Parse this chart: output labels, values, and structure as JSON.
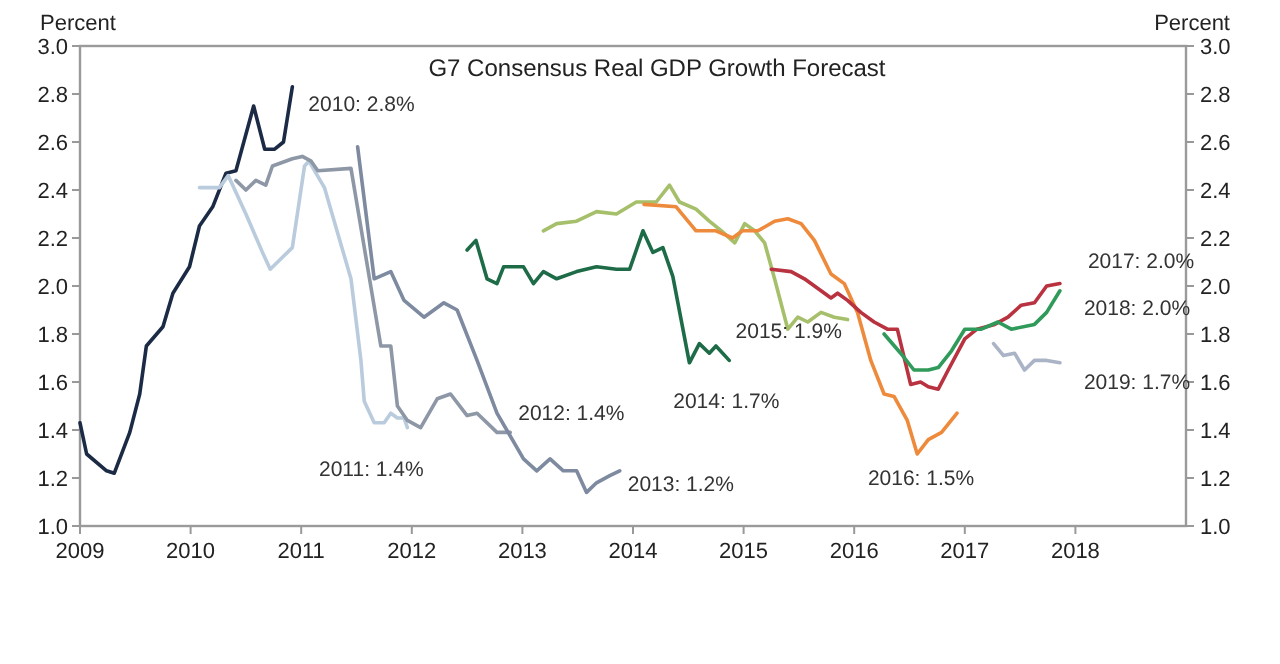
{
  "chart_data": {
    "type": "line",
    "title": "G7 Consensus Real GDP Growth Forecast",
    "ylabel": "Percent",
    "y2label": "Percent",
    "xlim": [
      2009,
      2019
    ],
    "xticks": [
      2009,
      2010,
      2011,
      2012,
      2013,
      2014,
      2015,
      2016,
      2017,
      2018
    ],
    "ylim": [
      1.0,
      3.0
    ],
    "yticks": [
      {
        "value": 1.0,
        "label": "1.0"
      },
      1.2,
      1.4,
      1.6,
      1.8,
      {
        "value": 2.0,
        "label": "2.0"
      },
      2.2,
      2.4,
      2.6,
      2.8,
      {
        "value": 3.0,
        "label": "3.0"
      }
    ],
    "y2lim": [
      1.0,
      3.0
    ],
    "y2ticks": [
      {
        "value": 1.0,
        "label": "1.0"
      },
      1.2,
      1.4,
      1.6,
      1.8,
      {
        "value": 2.0,
        "label": "2.0"
      },
      2.2,
      2.4,
      2.6,
      2.8,
      {
        "value": 3.0,
        "label": "3.0"
      }
    ],
    "grid": false,
    "marker": "none",
    "line_style": "solid",
    "series": [
      {
        "name": "2010: 2.8%",
        "color": "#1c2b45",
        "x": [
          2009.0,
          2009.06,
          2009.24,
          2009.31,
          2009.45,
          2009.54,
          2009.6,
          2009.75,
          2009.84,
          2009.99,
          2010.08,
          2010.2,
          2010.32,
          2010.41,
          2010.57,
          2010.67,
          2010.76,
          2010.84,
          2010.92
        ],
        "values": [
          1.43,
          1.3,
          1.23,
          1.22,
          1.39,
          1.55,
          1.75,
          1.83,
          1.97,
          2.08,
          2.25,
          2.33,
          2.47,
          2.48,
          2.75,
          2.57,
          2.57,
          2.6,
          2.83
        ]
      },
      {
        "name": "2011: 1.4%",
        "color": "#b9cbdc",
        "x": [
          2010.08,
          2010.26,
          2010.34,
          2010.5,
          2010.65,
          2010.72,
          2010.92,
          2011.03,
          2011.07,
          2011.21,
          2011.33,
          2011.45,
          2011.54,
          2011.57,
          2011.66,
          2011.75,
          2011.81,
          2011.87,
          2011.93,
          2011.96
        ],
        "values": [
          2.41,
          2.41,
          2.46,
          2.3,
          2.14,
          2.07,
          2.16,
          2.5,
          2.52,
          2.41,
          2.22,
          2.03,
          1.69,
          1.52,
          1.43,
          1.43,
          1.47,
          1.45,
          1.45,
          1.41
        ]
      },
      {
        "name": "2012: 1.4%",
        "color": "#8d97a6",
        "x": [
          2010.41,
          2010.5,
          2010.59,
          2010.68,
          2010.74,
          2010.92,
          2011.01,
          2011.09,
          2011.15,
          2011.45,
          2011.72,
          2011.81,
          2011.87,
          2011.96,
          2012.08,
          2012.23,
          2012.35,
          2012.5,
          2012.59,
          2012.77,
          2012.89
        ],
        "values": [
          2.44,
          2.4,
          2.44,
          2.42,
          2.5,
          2.53,
          2.54,
          2.52,
          2.48,
          2.49,
          1.75,
          1.75,
          1.5,
          1.44,
          1.41,
          1.53,
          1.55,
          1.46,
          1.47,
          1.39,
          1.39
        ]
      },
      {
        "name": "2013: 1.2%",
        "color": "#7d8aa0",
        "x": [
          2011.51,
          2011.66,
          2011.81,
          2011.93,
          2012.11,
          2012.29,
          2012.41,
          2012.59,
          2012.77,
          2013.01,
          2013.13,
          2013.25,
          2013.37,
          2013.49,
          2013.58,
          2013.67,
          2013.79,
          2013.88
        ],
        "values": [
          2.58,
          2.03,
          2.06,
          1.94,
          1.87,
          1.93,
          1.9,
          1.69,
          1.47,
          1.28,
          1.23,
          1.28,
          1.23,
          1.23,
          1.14,
          1.18,
          1.21,
          1.23
        ]
      },
      {
        "name": "2014: 1.7%",
        "color": "#1e6b47",
        "x": [
          2012.5,
          2012.58,
          2012.68,
          2012.77,
          2012.83,
          2013.01,
          2013.1,
          2013.19,
          2013.31,
          2013.49,
          2013.67,
          2013.85,
          2013.97,
          2014.09,
          2014.18,
          2014.27,
          2014.36,
          2014.51,
          2014.6,
          2014.69,
          2014.75,
          2014.87
        ],
        "values": [
          2.15,
          2.19,
          2.03,
          2.01,
          2.08,
          2.08,
          2.01,
          2.06,
          2.03,
          2.06,
          2.08,
          2.07,
          2.07,
          2.23,
          2.14,
          2.16,
          2.04,
          1.68,
          1.76,
          1.72,
          1.75,
          1.69
        ]
      },
      {
        "name": "2015: 1.9%",
        "color": "#a6bf6a",
        "x": [
          2013.19,
          2013.31,
          2013.49,
          2013.67,
          2013.85,
          2014.03,
          2014.21,
          2014.33,
          2014.42,
          2014.57,
          2014.69,
          2014.8,
          2014.92,
          2015.01,
          2015.1,
          2015.19,
          2015.28,
          2015.4,
          2015.49,
          2015.58,
          2015.7,
          2015.82,
          2015.94
        ],
        "values": [
          2.23,
          2.26,
          2.27,
          2.31,
          2.3,
          2.35,
          2.35,
          2.42,
          2.35,
          2.32,
          2.27,
          2.23,
          2.18,
          2.26,
          2.23,
          2.18,
          2.03,
          1.82,
          1.87,
          1.85,
          1.89,
          1.87,
          1.86
        ]
      },
      {
        "name": "2016: 1.5%",
        "color": "#ee8a3c",
        "x": [
          2014.1,
          2014.39,
          2014.57,
          2014.75,
          2014.9,
          2014.99,
          2015.13,
          2015.28,
          2015.4,
          2015.52,
          2015.64,
          2015.79,
          2015.91,
          2016.03,
          2016.15,
          2016.27,
          2016.36,
          2016.48,
          2016.57,
          2016.67,
          2016.79,
          2016.93
        ],
        "values": [
          2.34,
          2.33,
          2.23,
          2.23,
          2.2,
          2.23,
          2.23,
          2.27,
          2.28,
          2.26,
          2.19,
          2.05,
          2.01,
          1.89,
          1.69,
          1.55,
          1.54,
          1.44,
          1.3,
          1.36,
          1.39,
          1.47
        ]
      },
      {
        "name": "2017: 2.0%",
        "color": "#b8323f",
        "x": [
          2015.25,
          2015.43,
          2015.55,
          2015.7,
          2015.79,
          2015.85,
          2015.94,
          2016.06,
          2016.18,
          2016.3,
          2016.39,
          2016.51,
          2016.6,
          2016.67,
          2016.76,
          2016.85,
          2017.0,
          2017.11,
          2017.27,
          2017.39,
          2017.51,
          2017.63,
          2017.74,
          2017.86
        ],
        "values": [
          2.07,
          2.06,
          2.03,
          1.98,
          1.95,
          1.97,
          1.94,
          1.89,
          1.85,
          1.82,
          1.82,
          1.59,
          1.6,
          1.58,
          1.57,
          1.65,
          1.78,
          1.82,
          1.84,
          1.87,
          1.92,
          1.93,
          2.0,
          2.01
        ]
      },
      {
        "name": "2018: 2.0%",
        "color": "#2f9a5a",
        "x": [
          2016.27,
          2016.42,
          2016.54,
          2016.67,
          2016.76,
          2016.88,
          2017.0,
          2017.15,
          2017.3,
          2017.42,
          2017.63,
          2017.74,
          2017.86
        ],
        "values": [
          1.8,
          1.72,
          1.65,
          1.65,
          1.66,
          1.73,
          1.82,
          1.82,
          1.85,
          1.82,
          1.84,
          1.89,
          1.98
        ]
      },
      {
        "name": "2019: 1.7%",
        "color": "#aab4c6",
        "x": [
          2017.26,
          2017.35,
          2017.45,
          2017.54,
          2017.63,
          2017.74,
          2017.86
        ],
        "values": [
          1.76,
          1.71,
          1.72,
          1.65,
          1.69,
          1.69,
          1.68
        ]
      }
    ]
  }
}
